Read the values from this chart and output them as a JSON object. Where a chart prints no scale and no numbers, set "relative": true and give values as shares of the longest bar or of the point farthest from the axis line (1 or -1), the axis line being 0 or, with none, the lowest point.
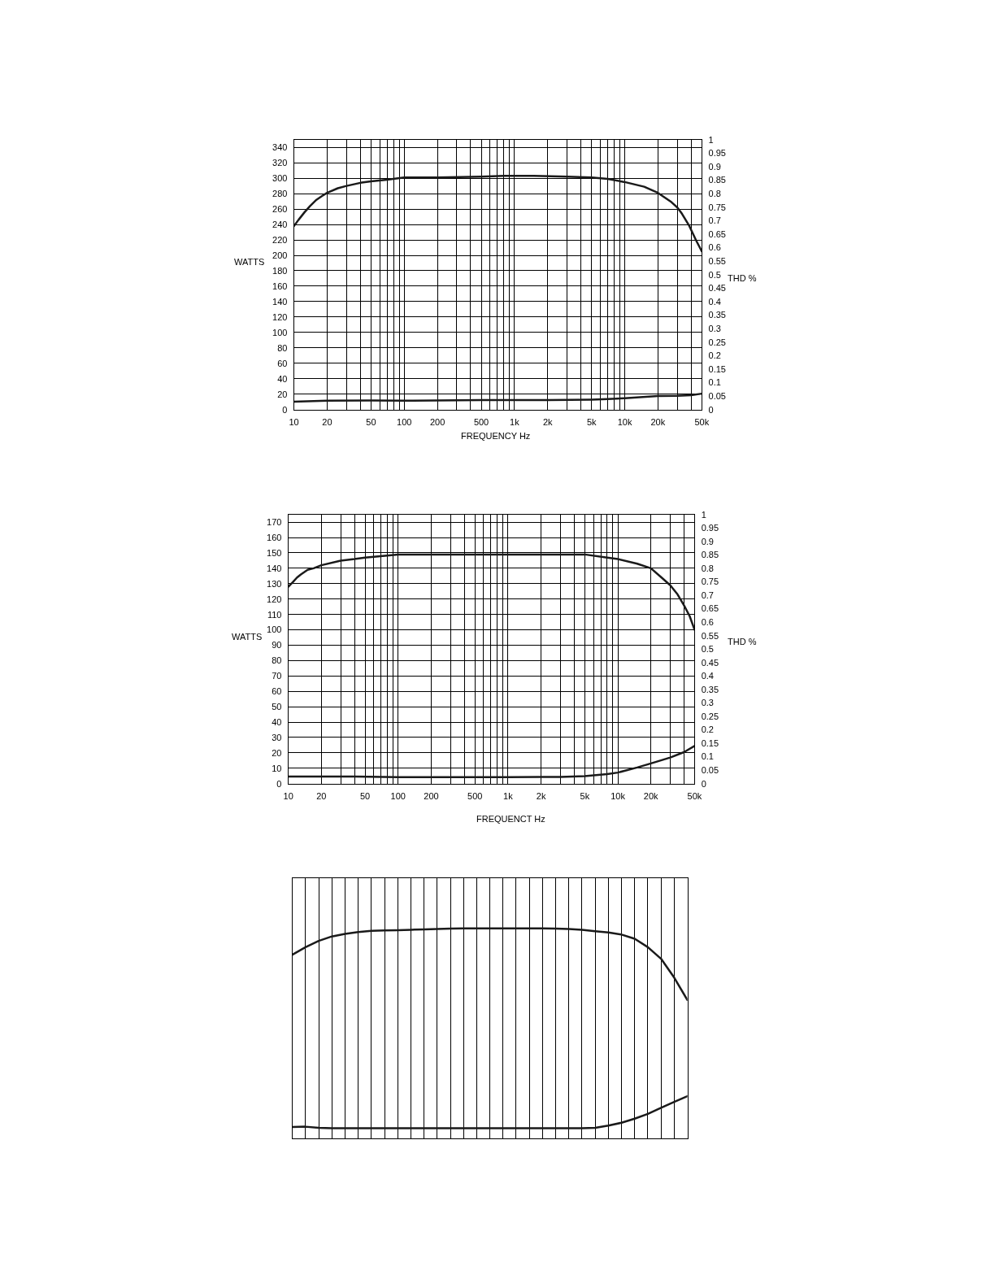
{
  "chart_data": [
    {
      "type": "line",
      "xlabel": "FREQUENCY Hz",
      "ylabel": "WATTS",
      "y2label": "THD %",
      "log": "x",
      "grid": true,
      "xlim": [
        10,
        50000
      ],
      "xticks": [
        10,
        20,
        {
          "value": 30,
          "label": null
        },
        {
          "value": 40,
          "label": null
        },
        50,
        {
          "value": 60,
          "label": null
        },
        {
          "value": 70,
          "label": null
        },
        {
          "value": 80,
          "label": null
        },
        {
          "value": 90,
          "label": null
        },
        100,
        200,
        {
          "value": 300,
          "label": null
        },
        {
          "value": 400,
          "label": null
        },
        500,
        {
          "value": 600,
          "label": null
        },
        {
          "value": 700,
          "label": null
        },
        {
          "value": 800,
          "label": null
        },
        {
          "value": 900,
          "label": null
        },
        {
          "value": 1000,
          "label": "1k"
        },
        {
          "value": 2000,
          "label": "2k"
        },
        {
          "value": 3000,
          "label": null
        },
        {
          "value": 4000,
          "label": null
        },
        {
          "value": 5000,
          "label": "5k"
        },
        {
          "value": 6000,
          "label": null
        },
        {
          "value": 7000,
          "label": null
        },
        {
          "value": 8000,
          "label": null
        },
        {
          "value": 9000,
          "label": null
        },
        {
          "value": 10000,
          "label": "10k"
        },
        {
          "value": 20000,
          "label": "20k"
        },
        {
          "value": 30000,
          "label": null
        },
        {
          "value": 40000,
          "label": null
        },
        {
          "value": 50000,
          "label": "50k"
        }
      ],
      "ylim": [
        0,
        350
      ],
      "yticks": [
        0,
        20,
        40,
        60,
        80,
        100,
        120,
        140,
        160,
        180,
        200,
        220,
        240,
        260,
        280,
        300,
        320,
        340
      ],
      "y2lim": [
        0,
        1
      ],
      "y2ticks": [
        0,
        0.05,
        0.1,
        0.15,
        0.2,
        0.25,
        0.3,
        0.35,
        0.4,
        0.45,
        0.5,
        0.55,
        0.6,
        0.65,
        0.7,
        0.75,
        0.8,
        0.85,
        0.9,
        0.95,
        1
      ],
      "series": [
        {
          "color": "#1a1a1a",
          "x": [
            10,
            11,
            12.5,
            14,
            16,
            18,
            20,
            25,
            30,
            40,
            50,
            70,
            100,
            200,
            500,
            800,
            1000,
            1500,
            3000,
            5000,
            7000,
            10000,
            15000,
            20000,
            26500,
            30000,
            33000,
            38500,
            44500,
            50000
          ],
          "values": [
            238,
            246,
            256,
            264,
            272,
            277,
            281,
            287,
            290,
            294,
            296,
            298,
            301,
            301,
            302,
            303,
            303,
            303,
            302,
            301,
            299,
            295,
            289,
            281,
            269,
            262,
            254,
            238,
            219,
            205
          ]
        },
        {
          "color": "#1a1a1a",
          "axis": "y2",
          "x": [
            10,
            20,
            50,
            100,
            500,
            1000,
            2000,
            5000,
            7000,
            10000,
            20000,
            30000,
            40000,
            50000
          ],
          "values": [
            0.029,
            0.033,
            0.034,
            0.033,
            0.035,
            0.035,
            0.035,
            0.037,
            0.039,
            0.042,
            0.05,
            0.051,
            0.053,
            0.059
          ]
        }
      ]
    },
    {
      "type": "line",
      "xlabel": "FREQUENCT Hz",
      "ylabel": "WATTS",
      "y2label": "THD %",
      "log": "x",
      "grid": true,
      "xlim": [
        10,
        50000
      ],
      "xticks": [
        10,
        20,
        {
          "value": 30,
          "label": null
        },
        {
          "value": 40,
          "label": null
        },
        50,
        {
          "value": 60,
          "label": null
        },
        {
          "value": 70,
          "label": null
        },
        {
          "value": 80,
          "label": null
        },
        {
          "value": 90,
          "label": null
        },
        100,
        200,
        {
          "value": 300,
          "label": null
        },
        {
          "value": 400,
          "label": null
        },
        500,
        {
          "value": 600,
          "label": null
        },
        {
          "value": 700,
          "label": null
        },
        {
          "value": 800,
          "label": null
        },
        {
          "value": 900,
          "label": null
        },
        {
          "value": 1000,
          "label": "1k"
        },
        {
          "value": 2000,
          "label": "2k"
        },
        {
          "value": 3000,
          "label": null
        },
        {
          "value": 4000,
          "label": null
        },
        {
          "value": 5000,
          "label": "5k"
        },
        {
          "value": 6000,
          "label": null
        },
        {
          "value": 7000,
          "label": null
        },
        {
          "value": 8000,
          "label": null
        },
        {
          "value": 9000,
          "label": null
        },
        {
          "value": 10000,
          "label": "10k"
        },
        {
          "value": 20000,
          "label": "20k"
        },
        {
          "value": 30000,
          "label": null
        },
        {
          "value": 40000,
          "label": null
        },
        {
          "value": 50000,
          "label": "50k"
        }
      ],
      "ylim": [
        0,
        175
      ],
      "yticks": [
        0,
        10,
        20,
        30,
        40,
        50,
        60,
        70,
        80,
        90,
        100,
        110,
        120,
        130,
        140,
        150,
        160,
        170
      ],
      "y2lim": [
        0,
        1
      ],
      "y2ticks": [
        0,
        0.05,
        0.1,
        0.15,
        0.2,
        0.25,
        0.3,
        0.35,
        0.4,
        0.45,
        0.5,
        0.55,
        0.6,
        0.65,
        0.7,
        0.75,
        0.8,
        0.85,
        0.9,
        0.95,
        1
      ],
      "series": [
        {
          "color": "#1a1a1a",
          "x": [
            10,
            11,
            12,
            13,
            15,
            17,
            20,
            30,
            40,
            50,
            100,
            200,
            300,
            1000,
            2000,
            4000,
            5000,
            8000,
            10000,
            15000,
            20000,
            25000,
            30000,
            35000,
            40000,
            45000,
            50000
          ],
          "values": [
            128,
            131,
            134,
            136,
            139,
            140,
            142,
            145,
            146,
            147,
            149,
            149,
            149,
            149,
            149,
            149,
            149,
            147,
            146,
            143,
            140,
            134,
            129,
            123,
            116,
            109,
            100
          ]
        },
        {
          "color": "#1a1a1a",
          "axis": "y2",
          "x": [
            10,
            40,
            100,
            1000,
            2000,
            3000,
            5000,
            8000,
            10000,
            15000,
            20000,
            30000,
            40000,
            50000
          ],
          "values": [
            0.026,
            0.026,
            0.024,
            0.024,
            0.025,
            0.025,
            0.028,
            0.035,
            0.041,
            0.06,
            0.075,
            0.097,
            0.117,
            0.14
          ]
        }
      ]
    },
    {
      "type": "line",
      "relative": true,
      "grid": true,
      "categories": [
        null,
        null,
        null,
        null,
        null,
        null,
        null,
        null,
        null,
        null,
        null,
        null,
        null,
        null,
        null,
        null,
        null,
        null,
        null,
        null,
        null,
        null,
        null,
        null,
        null,
        null,
        null,
        null,
        null,
        null,
        null
      ],
      "series": [
        {
          "color": "#1a1a1a",
          "values": [
            0.875,
            0.911,
            0.941,
            0.962,
            0.974,
            0.983,
            0.989,
            0.991,
            0.992,
            0.994,
            0.996,
            0.997,
            0.999,
            1,
            1,
            1,
            1,
            1,
            1,
            1,
            0.999,
            0.997,
            0.994,
            0.987,
            0.981,
            0.971,
            0.951,
            0.911,
            0.856,
            0.766,
            0.66
          ]
        },
        {
          "color": "#1a1a1a",
          "values": [
            0.056,
            0.057,
            0.052,
            0.05,
            0.05,
            0.05,
            0.05,
            0.05,
            0.05,
            0.05,
            0.05,
            0.05,
            0.05,
            0.05,
            0.05,
            0.05,
            0.05,
            0.05,
            0.05,
            0.05,
            0.05,
            0.05,
            0.05,
            0.052,
            0.062,
            0.076,
            0.095,
            0.118,
            0.147,
            0.175,
            0.202
          ]
        }
      ]
    }
  ]
}
